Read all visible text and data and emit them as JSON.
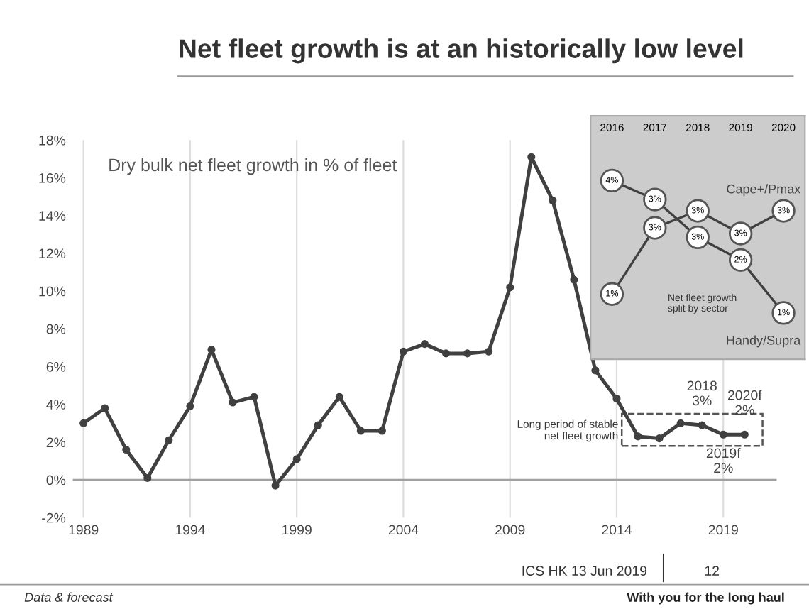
{
  "chart_data": [
    {
      "type": "line",
      "title": "Net fleet growth is at an historically low level",
      "subtitle": "Dry bulk net fleet growth in % of fleet",
      "x": [
        1989,
        1990,
        1991,
        1992,
        1993,
        1994,
        1995,
        1996,
        1997,
        1998,
        1999,
        2000,
        2001,
        2002,
        2003,
        2004,
        2005,
        2006,
        2007,
        2008,
        2009,
        2010,
        2011,
        2012,
        2013,
        2014,
        2015,
        2016,
        2017,
        2018,
        2019,
        2020
      ],
      "series": [
        {
          "color": "#404040",
          "values": [
            3.0,
            3.8,
            1.6,
            0.1,
            2.1,
            3.9,
            6.9,
            4.1,
            4.4,
            -0.3,
            1.1,
            2.9,
            4.4,
            2.6,
            2.6,
            6.8,
            7.2,
            6.7,
            6.7,
            6.8,
            10.2,
            17.1,
            14.8,
            10.6,
            5.8,
            4.3,
            2.3,
            2.2,
            3.0,
            2.9,
            2.4,
            2.4
          ]
        }
      ],
      "xlim": [
        1988.5,
        2021.5
      ],
      "ylim": [
        -2,
        18
      ],
      "xticks": [
        1989,
        1994,
        1999,
        2004,
        2009,
        2014,
        2019
      ],
      "yticks": [
        {
          "value": -2,
          "label": "-2%"
        },
        {
          "value": 0,
          "label": "0%"
        },
        {
          "value": 2,
          "label": "2%"
        },
        {
          "value": 4,
          "label": "4%"
        },
        {
          "value": 6,
          "label": "6%"
        },
        {
          "value": 8,
          "label": "8%"
        },
        {
          "value": 10,
          "label": "10%"
        },
        {
          "value": 12,
          "label": "12%"
        },
        {
          "value": 14,
          "label": "14%"
        },
        {
          "value": 16,
          "label": "16%"
        },
        {
          "value": 18,
          "label": "18%"
        }
      ],
      "ref_lines": [
        {
          "axis": "y",
          "value": 0,
          "color": "#a0a0a0"
        }
      ],
      "grid": "x",
      "marker": "circle",
      "line_style": "solid",
      "legend": false,
      "annotations": [
        "Long period of stable\nnet fleet growth",
        {
          "text": "2018\n3%",
          "x": 2018,
          "y": 2.9
        },
        {
          "text": "2020f\n2%",
          "x": 2020,
          "y": 2.4
        },
        {
          "text": "2019f\n2%",
          "x": 2019,
          "y": 2.4
        },
        "Data & forecast",
        "ICS HK 13 Jun 2019",
        "12",
        "With you for the long haul"
      ]
    },
    {
      "type": "line",
      "categories": [
        "2016",
        "2017",
        "2018",
        "2019",
        "2020"
      ],
      "series": [
        {
          "name": "Cape+/Pmax",
          "color": "#404040",
          "values": [
            1,
            2.75,
            3.2,
            2.6,
            3.2
          ],
          "value_labels": [
            "1%",
            "3%",
            "3%",
            "3%",
            "3%"
          ]
        },
        {
          "name": "Handy/Supra",
          "color": "#404040",
          "values": [
            4,
            3.5,
            2.5,
            1.9,
            0.5
          ],
          "value_labels": [
            "4%",
            "3%",
            "3%",
            "2%",
            "1%"
          ]
        }
      ],
      "marker": "circle",
      "line_style": "solid",
      "tick_labels": "x",
      "grid": false,
      "legend": false,
      "annotations": [
        "Net fleet growth\nsplit by sector"
      ]
    }
  ]
}
